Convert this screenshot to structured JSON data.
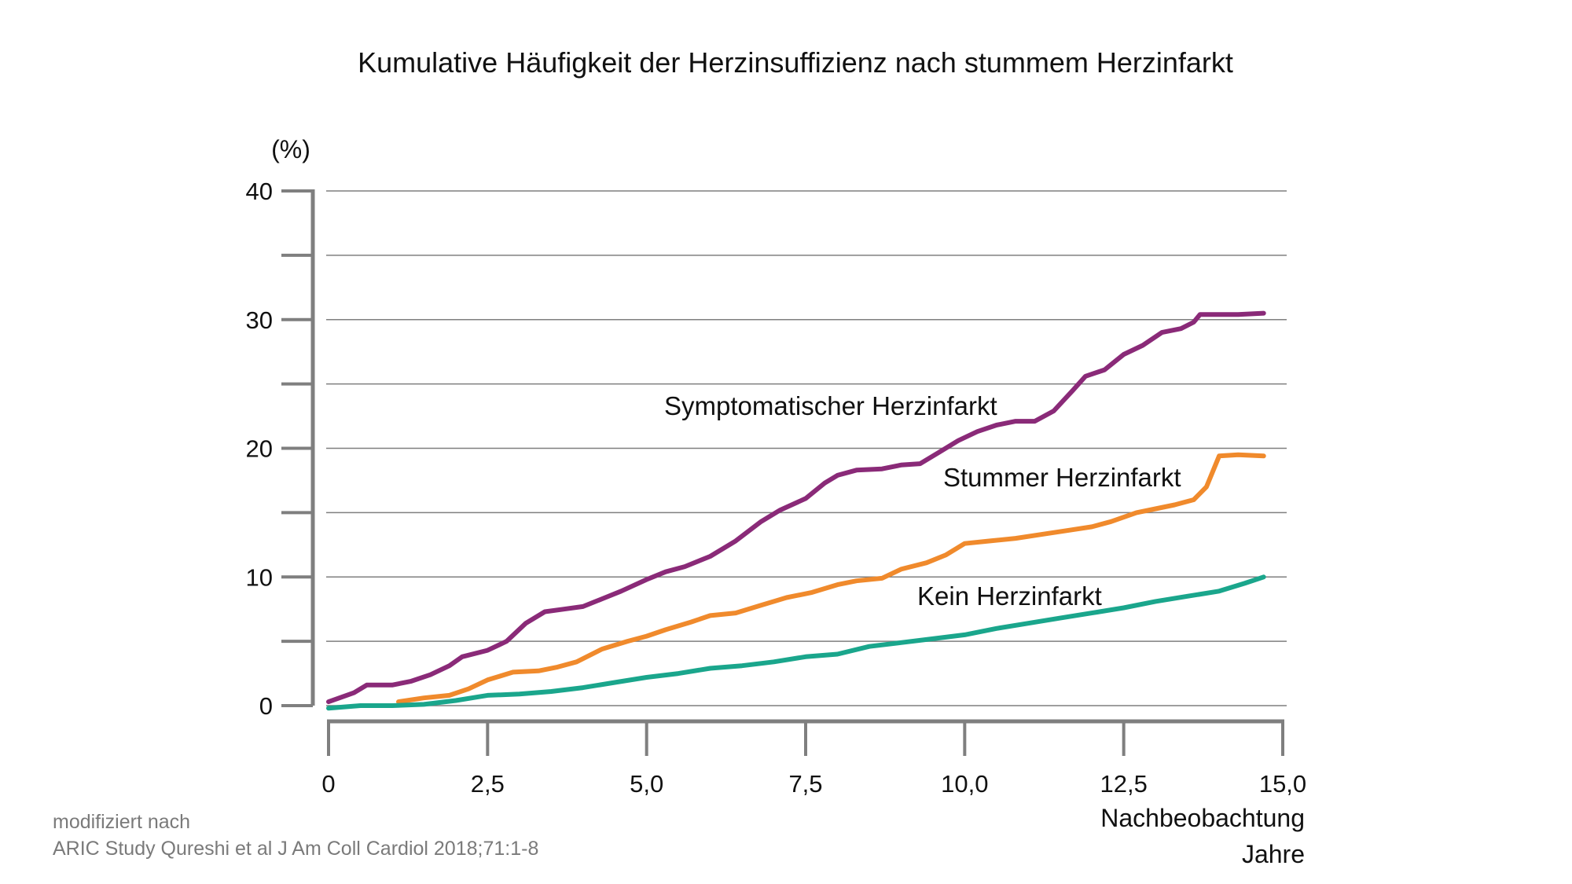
{
  "title": "Kumulative Häufigkeit der Herzinsuffizienz nach stummem Herzinfarkt",
  "source": {
    "line1": "modifiziert nach",
    "line2": "ARIC Study Qureshi et al J Am Coll Cardiol 2018;71:1-8"
  },
  "chart_data": {
    "type": "line",
    "title": "Kumulative Häufigkeit der Herzinsuffizienz nach stummem Herzinfarkt",
    "ylabel": "(%)",
    "xlabel": [
      "Nachbeobachtung",
      "Jahre"
    ],
    "xlim": [
      0,
      15
    ],
    "ylim": [
      0,
      40
    ],
    "x_ticks": [
      0,
      2.5,
      5,
      7.5,
      10,
      12.5,
      15
    ],
    "x_tick_labels": [
      "0",
      "2,5",
      "5,0",
      "7,5",
      "10,0",
      "12,5",
      "15,0"
    ],
    "y_ticks": [
      0,
      10,
      20,
      30,
      40
    ],
    "y_tick_labels": [
      "0",
      "10",
      "20",
      "30",
      "40"
    ],
    "grid": true,
    "series": [
      {
        "name": "Symptomatischer Herzinfarkt",
        "color": "#8a2a78",
        "x": [
          0,
          0.4,
          0.6,
          1.0,
          1.3,
          1.6,
          1.9,
          2.1,
          2.5,
          2.8,
          3.1,
          3.4,
          3.7,
          4.0,
          4.3,
          4.6,
          5.0,
          5.3,
          5.6,
          6.0,
          6.4,
          6.8,
          7.1,
          7.5,
          7.8,
          8.0,
          8.3,
          8.7,
          9.0,
          9.3,
          9.6,
          9.9,
          10.2,
          10.5,
          10.8,
          11.1,
          11.4,
          11.7,
          11.9,
          12.2,
          12.5,
          12.8,
          13.1,
          13.4,
          13.6,
          13.7,
          14.0,
          14.3,
          14.7
        ],
        "y": [
          0.3,
          1.0,
          1.6,
          1.6,
          1.9,
          2.4,
          3.1,
          3.8,
          4.3,
          5.0,
          6.4,
          7.3,
          7.5,
          7.7,
          8.3,
          8.9,
          9.8,
          10.4,
          10.8,
          11.6,
          12.8,
          14.3,
          15.2,
          16.1,
          17.3,
          17.9,
          18.3,
          18.4,
          18.7,
          18.8,
          19.7,
          20.6,
          21.3,
          21.8,
          22.1,
          22.1,
          22.9,
          24.5,
          25.6,
          26.1,
          27.3,
          28.0,
          29.0,
          29.3,
          29.8,
          30.4,
          30.4,
          30.4,
          30.5
        ]
      },
      {
        "name": "Stummer Herzinfarkt",
        "color": "#f08a2c",
        "x": [
          1.1,
          1.5,
          1.9,
          2.2,
          2.5,
          2.9,
          3.3,
          3.6,
          3.9,
          4.3,
          4.7,
          5.0,
          5.3,
          5.7,
          6.0,
          6.4,
          6.8,
          7.2,
          7.6,
          8.0,
          8.3,
          8.7,
          9.0,
          9.4,
          9.7,
          10.0,
          10.4,
          10.8,
          11.2,
          11.6,
          12.0,
          12.3,
          12.7,
          13.0,
          13.3,
          13.6,
          13.8,
          14.0,
          14.3,
          14.7
        ],
        "y": [
          0.3,
          0.6,
          0.8,
          1.3,
          2.0,
          2.6,
          2.7,
          3.0,
          3.4,
          4.4,
          5.0,
          5.4,
          5.9,
          6.5,
          7.0,
          7.2,
          7.8,
          8.4,
          8.8,
          9.4,
          9.7,
          9.9,
          10.6,
          11.1,
          11.7,
          12.6,
          12.8,
          13.0,
          13.3,
          13.6,
          13.9,
          14.3,
          15.0,
          15.3,
          15.6,
          16.0,
          17.0,
          19.4,
          19.5,
          19.4
        ]
      },
      {
        "name": "Kein Herzinfarkt",
        "color": "#1aa68c",
        "x": [
          0,
          0.5,
          1.0,
          1.5,
          2.0,
          2.5,
          3.0,
          3.5,
          4.0,
          4.5,
          5.0,
          5.5,
          6.0,
          6.5,
          7.0,
          7.5,
          8.0,
          8.5,
          9.0,
          9.5,
          10.0,
          10.5,
          11.0,
          11.5,
          12.0,
          12.5,
          13.0,
          13.5,
          14.0,
          14.4,
          14.7
        ],
        "y": [
          -0.2,
          0.0,
          0.0,
          0.1,
          0.4,
          0.8,
          0.9,
          1.1,
          1.4,
          1.8,
          2.2,
          2.5,
          2.9,
          3.1,
          3.4,
          3.8,
          4.0,
          4.6,
          4.9,
          5.2,
          5.5,
          6.0,
          6.4,
          6.8,
          7.2,
          7.6,
          8.1,
          8.5,
          8.9,
          9.5,
          10.0
        ]
      }
    ]
  }
}
